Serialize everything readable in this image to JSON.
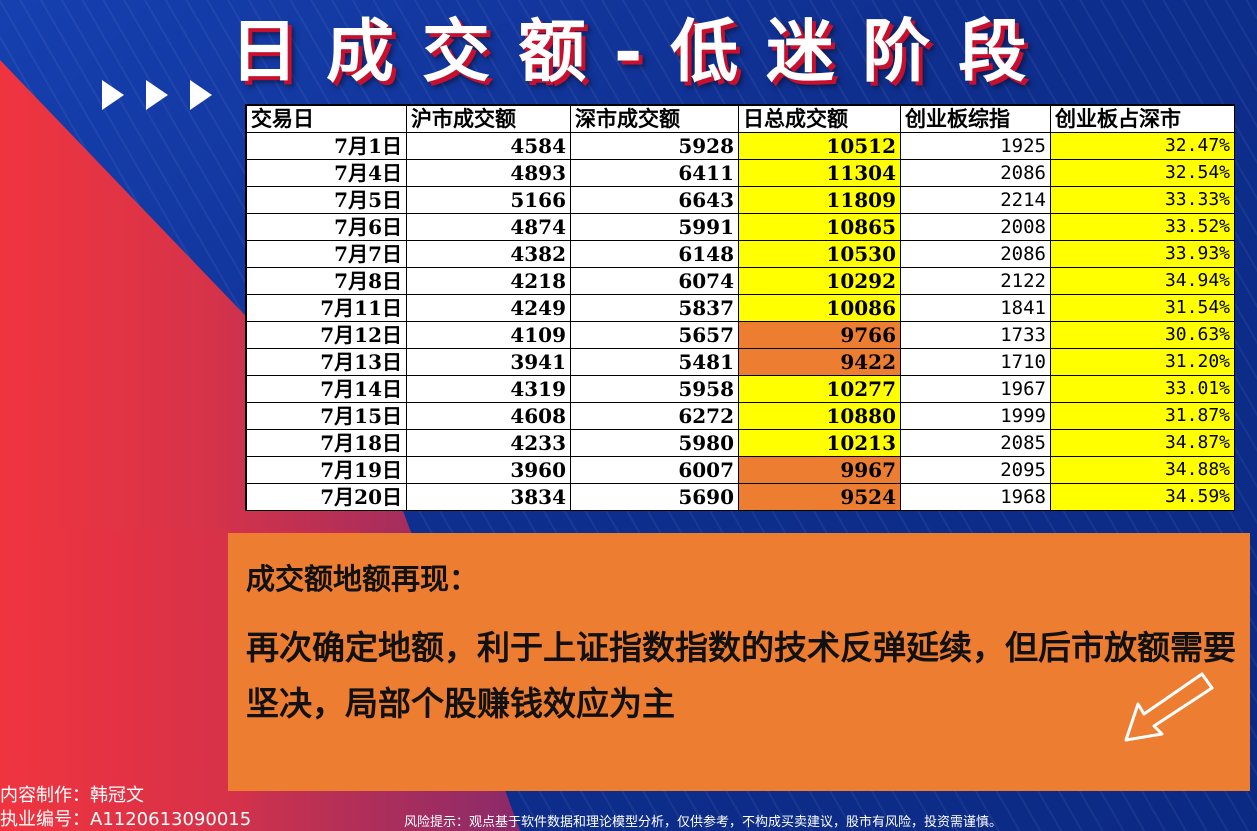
{
  "title": "日成交额-低迷阶段",
  "table": {
    "headers": [
      "交易日",
      "沪市成交额",
      "深市成交额",
      "日总成交额",
      "创业板综指",
      "创业板占深市"
    ],
    "rows": [
      {
        "date": "7月1日",
        "sh": "4584",
        "sz": "5928",
        "total": "10512",
        "total_color": "yellow",
        "cyb": "1925",
        "pct": "32.47%"
      },
      {
        "date": "7月4日",
        "sh": "4893",
        "sz": "6411",
        "total": "11304",
        "total_color": "yellow",
        "cyb": "2086",
        "pct": "32.54%"
      },
      {
        "date": "7月5日",
        "sh": "5166",
        "sz": "6643",
        "total": "11809",
        "total_color": "yellow",
        "cyb": "2214",
        "pct": "33.33%"
      },
      {
        "date": "7月6日",
        "sh": "4874",
        "sz": "5991",
        "total": "10865",
        "total_color": "yellow",
        "cyb": "2008",
        "pct": "33.52%"
      },
      {
        "date": "7月7日",
        "sh": "4382",
        "sz": "6148",
        "total": "10530",
        "total_color": "yellow",
        "cyb": "2086",
        "pct": "33.93%"
      },
      {
        "date": "7月8日",
        "sh": "4218",
        "sz": "6074",
        "total": "10292",
        "total_color": "yellow",
        "cyb": "2122",
        "pct": "34.94%"
      },
      {
        "date": "7月11日",
        "sh": "4249",
        "sz": "5837",
        "total": "10086",
        "total_color": "yellow",
        "cyb": "1841",
        "pct": "31.54%"
      },
      {
        "date": "7月12日",
        "sh": "4109",
        "sz": "5657",
        "total": "9766",
        "total_color": "orange",
        "cyb": "1733",
        "pct": "30.63%"
      },
      {
        "date": "7月13日",
        "sh": "3941",
        "sz": "5481",
        "total": "9422",
        "total_color": "orange",
        "cyb": "1710",
        "pct": "31.20%"
      },
      {
        "date": "7月14日",
        "sh": "4319",
        "sz": "5958",
        "total": "10277",
        "total_color": "yellow",
        "cyb": "1967",
        "pct": "33.01%"
      },
      {
        "date": "7月15日",
        "sh": "4608",
        "sz": "6272",
        "total": "10880",
        "total_color": "yellow",
        "cyb": "1999",
        "pct": "31.87%"
      },
      {
        "date": "7月18日",
        "sh": "4233",
        "sz": "5980",
        "total": "10213",
        "total_color": "yellow",
        "cyb": "2085",
        "pct": "34.87%"
      },
      {
        "date": "7月19日",
        "sh": "3960",
        "sz": "6007",
        "total": "9967",
        "total_color": "orange",
        "cyb": "2095",
        "pct": "34.88%"
      },
      {
        "date": "7月20日",
        "sh": "3834",
        "sz": "5690",
        "total": "9524",
        "total_color": "orange",
        "cyb": "1968",
        "pct": "34.59%"
      }
    ]
  },
  "note": {
    "heading": "成交额地额再现：",
    "body": "再次确定地额，利于上证指数指数的技术反弹延续，但后市放额需要坚决，局部个股赚钱效应为主"
  },
  "footer": {
    "author": "内容制作：韩冠文",
    "license": "执业编号：A1120613090015",
    "risk": "风险提示：观点基于软件数据和理论模型分析，仅供参考，不构成买卖建议，股市有风险，投资需谨慎。"
  },
  "colors": {
    "yellow": "#ffff00",
    "orange": "#ed7d31",
    "title_shadow": "#c8102e"
  },
  "icons": [
    "play-arrow-icon",
    "pointer-arrow-icon"
  ]
}
